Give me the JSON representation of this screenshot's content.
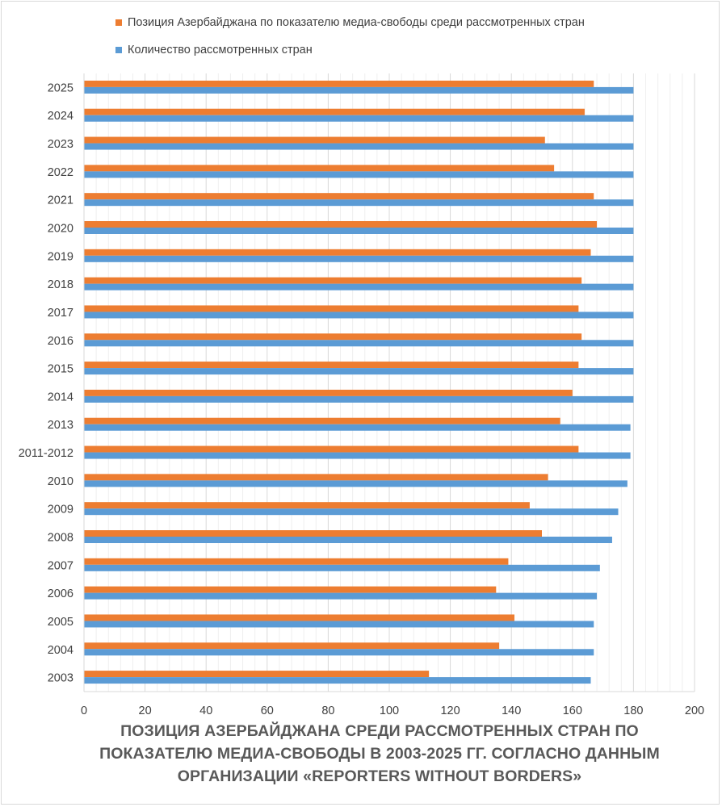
{
  "chart_data": {
    "type": "bar",
    "orientation": "horizontal",
    "title_lines": [
      "ПОЗИЦИЯ АЗЕРБАЙДЖАНА СРЕДИ РАССМОТРЕННЫХ СТРАН ПО",
      "ПОКАЗАТЕЛЮ МЕДИА-СВОБОДЫ В 2003-2025 ГГ. СОГЛАСНО ДАННЫМ",
      "ОРГАНИЗАЦИИ «REPORTERS WITHOUT BORDERS»"
    ],
    "categories": [
      "2025",
      "2024",
      "2023",
      "2022",
      "2021",
      "2020",
      "2019",
      "2018",
      "2017",
      "2016",
      "2015",
      "2014",
      "2013",
      "2011-2012",
      "2010",
      "2009",
      "2008",
      "2007",
      "2006",
      "2005",
      "2004",
      "2003"
    ],
    "series": [
      {
        "name": "Позиция Азербайджана по показателю медиа-свободы среди рассмотренных стран",
        "color": "#ed7d31",
        "values": [
          167,
          164,
          151,
          154,
          167,
          168,
          166,
          163,
          162,
          163,
          162,
          160,
          156,
          162,
          152,
          146,
          150,
          139,
          135,
          141,
          136,
          113
        ]
      },
      {
        "name": "Количество рассмотренных стран",
        "color": "#5b9bd5",
        "values": [
          180,
          180,
          180,
          180,
          180,
          180,
          180,
          180,
          180,
          180,
          180,
          180,
          179,
          179,
          178,
          175,
          173,
          169,
          168,
          167,
          167,
          166
        ]
      }
    ],
    "xlim": [
      0,
      200
    ],
    "x_ticks": [
      "0",
      "20",
      "40",
      "60",
      "80",
      "100",
      "120",
      "140",
      "160",
      "180",
      "200"
    ],
    "minor_grid_step": 4,
    "legend_position": "top",
    "grid": true
  }
}
